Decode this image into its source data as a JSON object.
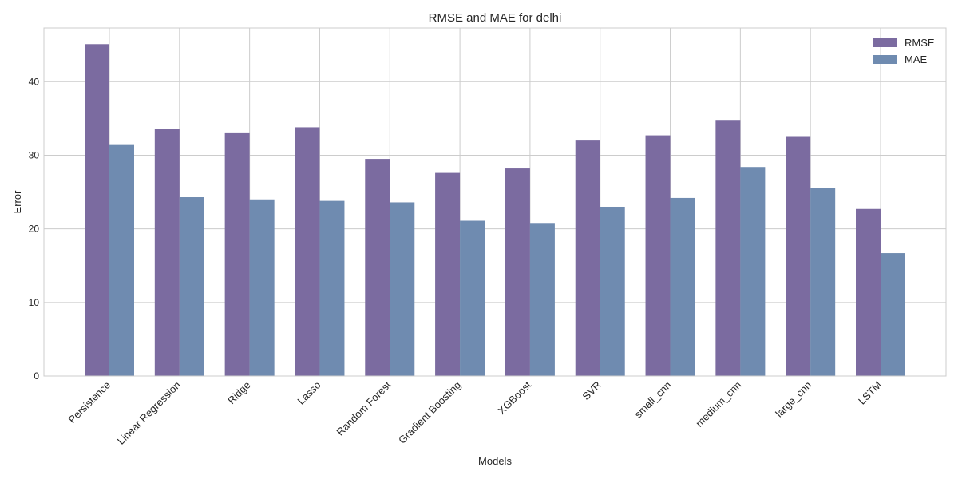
{
  "chart_data": {
    "type": "bar",
    "title": "RMSE and MAE for delhi",
    "xlabel": "Models",
    "ylabel": "Error",
    "ylim": [
      0,
      47.3
    ],
    "yticks": [
      0,
      10,
      20,
      30,
      40
    ],
    "grid": true,
    "legend_position": "top-right",
    "categories": [
      "Persistence",
      "Linear Regression",
      "Ridge",
      "Lasso",
      "Random Forest",
      "Gradient Boosting",
      "XGBoost",
      "SVR",
      "small_cnn",
      "medium_cnn",
      "large_cnn",
      "LSTM"
    ],
    "series": [
      {
        "name": "RMSE",
        "color": "#7b6ba0",
        "values": [
          45.1,
          33.6,
          33.1,
          33.8,
          29.5,
          27.6,
          28.2,
          32.1,
          32.7,
          34.8,
          32.6,
          22.7
        ]
      },
      {
        "name": "MAE",
        "color": "#6f8bb0",
        "values": [
          31.5,
          24.3,
          24.0,
          23.8,
          23.6,
          21.1,
          20.8,
          23.0,
          24.2,
          28.4,
          25.6,
          16.7
        ]
      }
    ]
  }
}
